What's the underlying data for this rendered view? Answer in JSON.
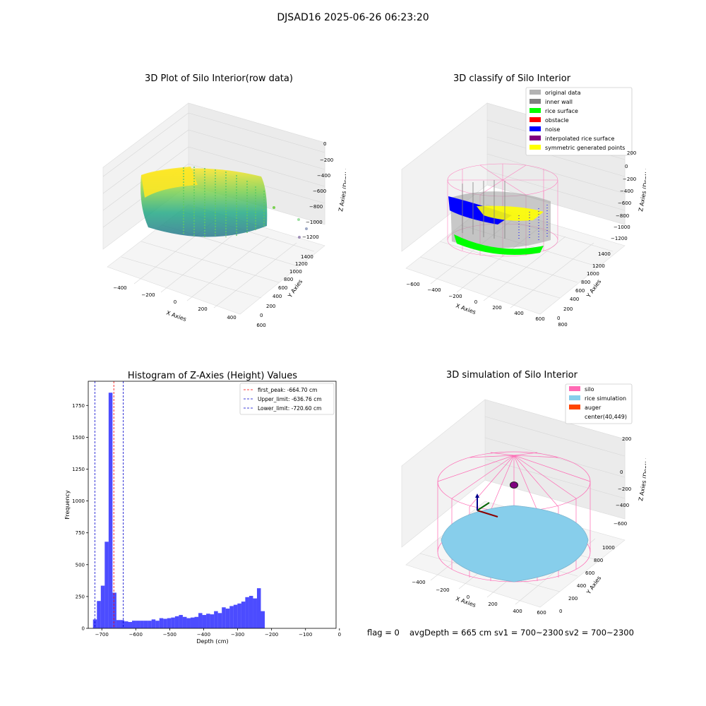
{
  "suptitle": "DJSAD16 2025-06-26 06:23:20",
  "panels": {
    "raw": {
      "title": "3D Plot of Silo Interior(row data)",
      "xlabel": "X Axies",
      "ylabel": "Y Axies",
      "zlabel": "Z Axies (Depth)",
      "xticks": [
        "−400",
        "−200",
        "0",
        "200",
        "400",
        "600"
      ],
      "yticks": [
        "0",
        "200",
        "400",
        "600",
        "800",
        "1000",
        "1200",
        "1400"
      ],
      "zticks": [
        "0",
        "−200",
        "−400",
        "−600",
        "−800",
        "−1000",
        "−1200"
      ]
    },
    "classify": {
      "title": "3D classify of Silo Interior",
      "xlabel": "X Axies",
      "ylabel": "Y Axies",
      "zlabel": "Z Axies (Depth)",
      "xticks": [
        "−600",
        "−400",
        "−200",
        "0",
        "200",
        "400",
        "600",
        "800"
      ],
      "yticks": [
        "0",
        "200",
        "400",
        "600",
        "800",
        "1000",
        "1200",
        "1400"
      ],
      "zticks": [
        "200",
        "0",
        "−200",
        "−400",
        "−600",
        "−800",
        "−1000",
        "−1200"
      ],
      "legend": [
        {
          "label": "original data",
          "color": "#b3b3b3"
        },
        {
          "label": "inner wall",
          "color": "#808080"
        },
        {
          "label": "rice surface",
          "color": "#00ff00"
        },
        {
          "label": "obstacle",
          "color": "#ff0000"
        },
        {
          "label": "noise",
          "color": "#0000ff"
        },
        {
          "label": "interpolated rice surface",
          "color": "#800080"
        },
        {
          "label": "symmetric generated points",
          "color": "#ffff00"
        }
      ]
    },
    "simulation": {
      "title": "3D simulation of Silo Interior",
      "xlabel": "X Axies",
      "ylabel": "Y Axies",
      "zlabel": "Z Axies (Depth)",
      "xticks": [
        "−400",
        "−200",
        "0",
        "200",
        "400",
        "600"
      ],
      "yticks": [
        "0",
        "200",
        "400",
        "600",
        "800",
        "1000"
      ],
      "zticks": [
        "200",
        "0",
        "−200",
        "−400",
        "−600"
      ],
      "legend": [
        {
          "label": "silo",
          "color": "#ff69b4"
        },
        {
          "label": "rice simulation",
          "color": "#87ceeb"
        },
        {
          "label": "auger",
          "color": "#ff4500"
        },
        {
          "label": "center(40,449)",
          "color": ""
        }
      ]
    }
  },
  "status": {
    "flag": "flag = 0",
    "avg_depth": "avgDepth = 665 cm",
    "sv1": "sv1 = 700~2300",
    "sv2": "sv2 = 700~2300"
  },
  "chart_data": [
    {
      "type": "bar",
      "title": "Histogram of Z-Axies (Height) Values",
      "xlabel": "Depth (cm)",
      "ylabel": "Frequency",
      "xlim": [
        -740,
        -10
      ],
      "ylim": [
        0,
        1940
      ],
      "xticks": [
        -700,
        -600,
        -500,
        -400,
        -300,
        -200,
        -100,
        0
      ],
      "yticks": [
        0,
        250,
        500,
        750,
        1000,
        1250,
        1500,
        1750
      ],
      "bar_color": "#0000ff",
      "bin_edges_start": -726,
      "bin_width": 11.5,
      "values": [
        70,
        215,
        335,
        680,
        1850,
        280,
        65,
        65,
        55,
        50,
        60,
        60,
        60,
        60,
        60,
        70,
        60,
        80,
        75,
        80,
        85,
        95,
        105,
        90,
        80,
        85,
        90,
        120,
        105,
        115,
        110,
        135,
        120,
        165,
        155,
        175,
        185,
        195,
        210,
        245,
        255,
        235,
        315,
        135
      ],
      "lines": [
        {
          "label": "first_peak: -664.70 cm",
          "x": -664.7,
          "color": "#ff0000"
        },
        {
          "label": "Upper_limit: -636.76 cm",
          "x": -636.76,
          "color": "#0000cc"
        },
        {
          "label": "Lower_limit: -720.60 cm",
          "x": -720.6,
          "color": "#0000cc"
        }
      ],
      "legend_position": "top-right"
    }
  ]
}
